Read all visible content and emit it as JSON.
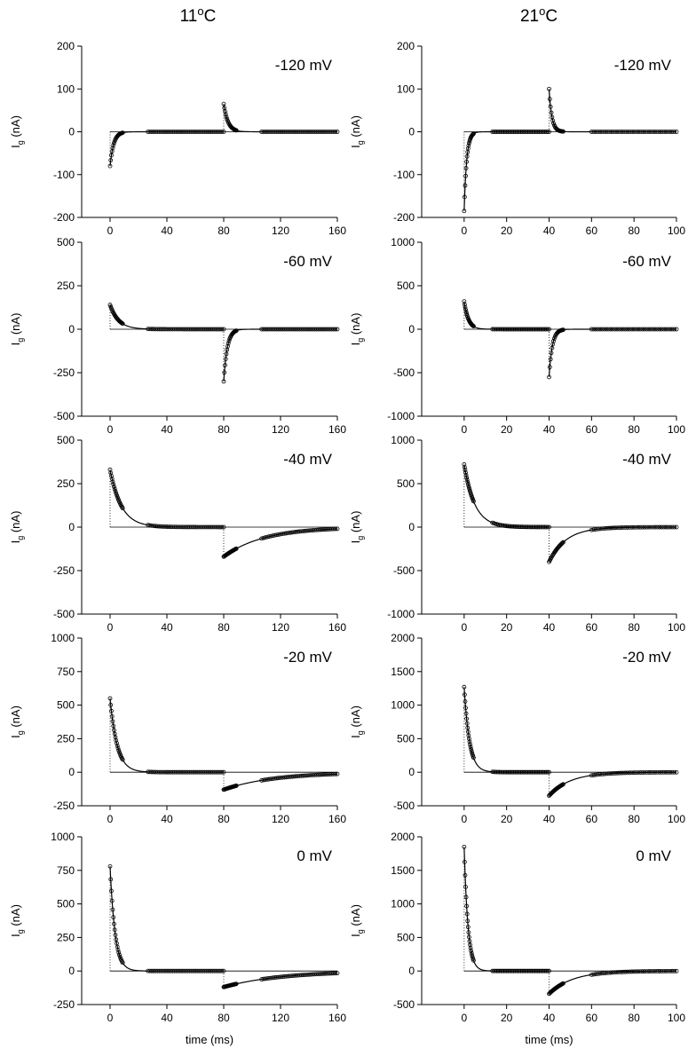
{
  "figure": {
    "col_titles": {
      "left": {
        "value": "11",
        "sup": "o",
        "unit": "C"
      },
      "right": {
        "value": "21",
        "sup": "o",
        "unit": "C"
      }
    },
    "ylabel": {
      "main": "I",
      "sub": "g",
      "unit": " (nA)"
    },
    "xlabel": "time (ms)"
  },
  "chart_data": [
    {
      "type": "scatter",
      "temperature": "11 oC",
      "voltage_label": "-120 mV",
      "xlim": [
        -20,
        160
      ],
      "xticks": [
        0,
        40,
        80,
        120,
        160
      ],
      "ylim": [
        -200,
        200
      ],
      "yticks": [
        -200,
        -100,
        0,
        100,
        200
      ],
      "ylabel": "Ig (nA)",
      "xlabel": "",
      "step_end_ms": 80,
      "on_peak_nA": -80,
      "on_tau_ms": 2.5,
      "off_peak_nA": 65,
      "off_tau_ms": 3
    },
    {
      "type": "scatter",
      "temperature": "21 oC",
      "voltage_label": "-120 mV",
      "xlim": [
        -20,
        100
      ],
      "xticks": [
        0,
        20,
        40,
        60,
        80,
        100
      ],
      "ylim": [
        -200,
        200
      ],
      "yticks": [
        -200,
        -100,
        0,
        100,
        200
      ],
      "ylabel": "Ig (nA)",
      "xlabel": "",
      "step_end_ms": 40,
      "on_peak_nA": -185,
      "on_tau_ms": 1.2,
      "off_peak_nA": 100,
      "off_tau_ms": 1.3
    },
    {
      "type": "scatter",
      "temperature": "11 oC",
      "voltage_label": "-60 mV",
      "xlim": [
        -20,
        160
      ],
      "xticks": [
        0,
        40,
        80,
        120,
        160
      ],
      "ylim": [
        -500,
        500
      ],
      "yticks": [
        -500,
        -250,
        0,
        250,
        500
      ],
      "ylabel": "Ig (nA)",
      "xlabel": "",
      "step_end_ms": 80,
      "on_peak_nA": 140,
      "on_tau_ms": 6,
      "off_peak_nA": -300,
      "off_tau_ms": 2.5
    },
    {
      "type": "scatter",
      "temperature": "21 oC",
      "voltage_label": "-60 mV",
      "xlim": [
        -20,
        100
      ],
      "xticks": [
        0,
        20,
        40,
        60,
        80,
        100
      ],
      "ylim": [
        -1000,
        1000
      ],
      "yticks": [
        -1000,
        -500,
        0,
        500,
        1000
      ],
      "ylabel": "Ig (nA)",
      "xlabel": "",
      "step_end_ms": 40,
      "on_peak_nA": 320,
      "on_tau_ms": 2,
      "off_peak_nA": -550,
      "off_tau_ms": 1.5
    },
    {
      "type": "scatter",
      "temperature": "11 oC",
      "voltage_label": "-40 mV",
      "xlim": [
        -20,
        160
      ],
      "xticks": [
        0,
        40,
        80,
        120,
        160
      ],
      "ylim": [
        -500,
        500
      ],
      "yticks": [
        -500,
        -250,
        0,
        250,
        500
      ],
      "ylabel": "Ig (nA)",
      "xlabel": "",
      "step_end_ms": 80,
      "on_peak_nA": 330,
      "on_tau_ms": 8,
      "off_peak_nA": -170,
      "off_tau_ms": 28
    },
    {
      "type": "scatter",
      "temperature": "21 oC",
      "voltage_label": "-40 mV",
      "xlim": [
        -20,
        100
      ],
      "xticks": [
        0,
        20,
        40,
        60,
        80,
        100
      ],
      "ylim": [
        -1000,
        1000
      ],
      "yticks": [
        -1000,
        -500,
        0,
        500,
        1000
      ],
      "ylabel": "Ig (nA)",
      "xlabel": "",
      "step_end_ms": 40,
      "on_peak_nA": 720,
      "on_tau_ms": 5,
      "off_peak_nA": -400,
      "off_tau_ms": 8
    },
    {
      "type": "scatter",
      "temperature": "11 oC",
      "voltage_label": "-20 mV",
      "xlim": [
        -20,
        160
      ],
      "xticks": [
        0,
        40,
        80,
        120,
        160
      ],
      "ylim": [
        -250,
        1000
      ],
      "yticks": [
        -250,
        0,
        250,
        500,
        750,
        1000
      ],
      "ylabel": "Ig (nA)",
      "xlabel": "",
      "step_end_ms": 80,
      "on_peak_nA": 550,
      "on_tau_ms": 5,
      "off_peak_nA": -130,
      "off_tau_ms": 35
    },
    {
      "type": "scatter",
      "temperature": "21 oC",
      "voltage_label": "-20 mV",
      "xlim": [
        -20,
        100
      ],
      "xticks": [
        0,
        20,
        40,
        60,
        80,
        100
      ],
      "ylim": [
        -500,
        2000
      ],
      "yticks": [
        -500,
        0,
        500,
        1000,
        1500,
        2000
      ],
      "ylabel": "Ig (nA)",
      "xlabel": "",
      "step_end_ms": 40,
      "on_peak_nA": 1270,
      "on_tau_ms": 2.5,
      "off_peak_nA": -350,
      "off_tau_ms": 10
    },
    {
      "type": "scatter",
      "temperature": "11 oC",
      "voltage_label": "0 mV",
      "xlim": [
        -20,
        160
      ],
      "xticks": [
        0,
        40,
        80,
        120,
        160
      ],
      "ylim": [
        -250,
        1000
      ],
      "yticks": [
        -250,
        0,
        250,
        500,
        750,
        1000
      ],
      "ylabel": "Ig (nA)",
      "xlabel": "time (ms)",
      "step_end_ms": 80,
      "on_peak_nA": 780,
      "on_tau_ms": 3.5,
      "off_peak_nA": -120,
      "off_tau_ms": 40
    },
    {
      "type": "scatter",
      "temperature": "21 oC",
      "voltage_label": "0 mV",
      "xlim": [
        -20,
        100
      ],
      "xticks": [
        0,
        20,
        40,
        60,
        80,
        100
      ],
      "ylim": [
        -500,
        2000
      ],
      "yticks": [
        -500,
        0,
        500,
        1000,
        1500,
        2000
      ],
      "ylabel": "Ig (nA)",
      "xlabel": "time (ms)",
      "step_end_ms": 40,
      "on_peak_nA": 1850,
      "on_tau_ms": 1.8,
      "off_peak_nA": -340,
      "off_tau_ms": 11
    }
  ]
}
